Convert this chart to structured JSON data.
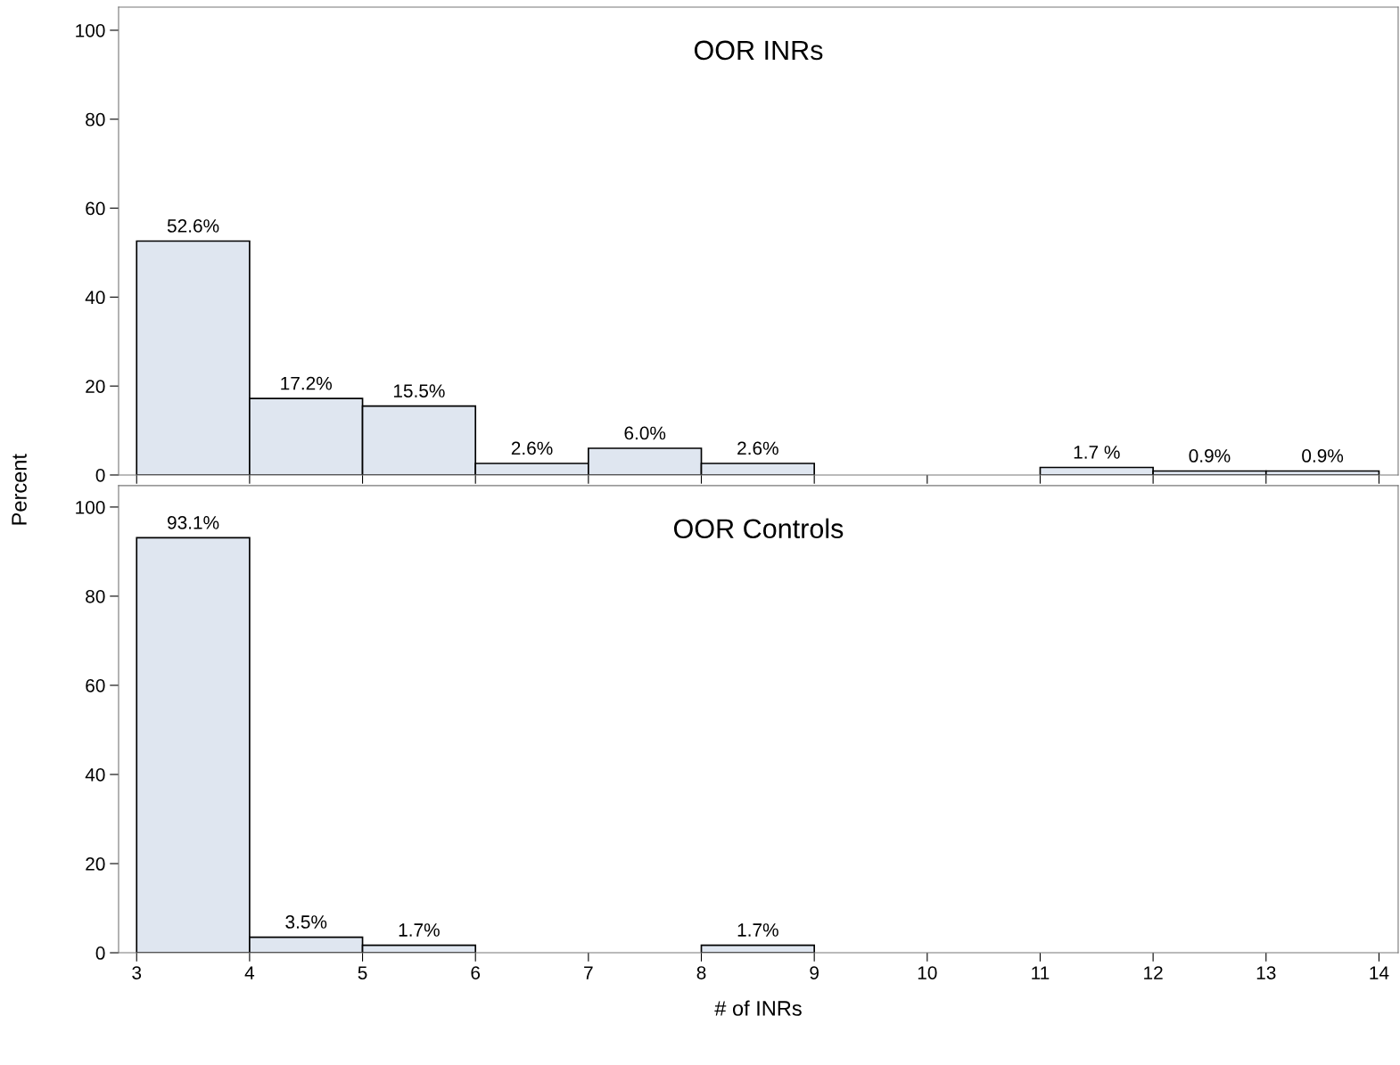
{
  "chart_data": [
    {
      "type": "histogram",
      "title": "OOR INRs",
      "ylabel": "Percent",
      "bins": [
        3,
        4,
        5,
        6,
        7,
        8,
        9,
        10,
        11,
        12,
        13,
        14
      ],
      "values": [
        52.6,
        17.2,
        15.5,
        2.6,
        6.0,
        2.6,
        0,
        0,
        1.7,
        0.9,
        0.9
      ],
      "value_labels": [
        "52.6%",
        "17.2%",
        "15.5%",
        "2.6%",
        "6.0%",
        "2.6%",
        null,
        null,
        "1.7 %",
        "0.9%",
        "0.9%"
      ],
      "color": "#dfe6f0",
      "xlim": [
        2.84,
        14.17
      ],
      "xticks": [
        3,
        4,
        5,
        6,
        7,
        8,
        9,
        10,
        11,
        12,
        13,
        14
      ],
      "ylim": [
        0,
        105.2
      ],
      "yticks": [
        0,
        20,
        40,
        60,
        80,
        100
      ],
      "grid": false,
      "tick_labels": "y"
    },
    {
      "type": "histogram",
      "title": "OOR Controls",
      "xlabel": "# of INRs",
      "bins": [
        3,
        4,
        5,
        6,
        7,
        8,
        9,
        10,
        11,
        12,
        13,
        14
      ],
      "values": [
        93.1,
        3.5,
        1.7,
        0,
        0,
        1.7,
        0,
        0,
        0,
        0,
        0
      ],
      "value_labels": [
        "93.1%",
        "3.5%",
        "1.7%",
        null,
        null,
        "1.7%",
        null,
        null,
        null,
        null,
        null
      ],
      "color": "#dfe6f0",
      "xlim": [
        2.84,
        14.17
      ],
      "xticks": [
        3,
        4,
        5,
        6,
        7,
        8,
        9,
        10,
        11,
        12,
        13,
        14
      ],
      "ylim": [
        0,
        104.8
      ],
      "yticks": [
        0,
        20,
        40,
        60,
        80,
        100
      ],
      "grid": false
    }
  ]
}
